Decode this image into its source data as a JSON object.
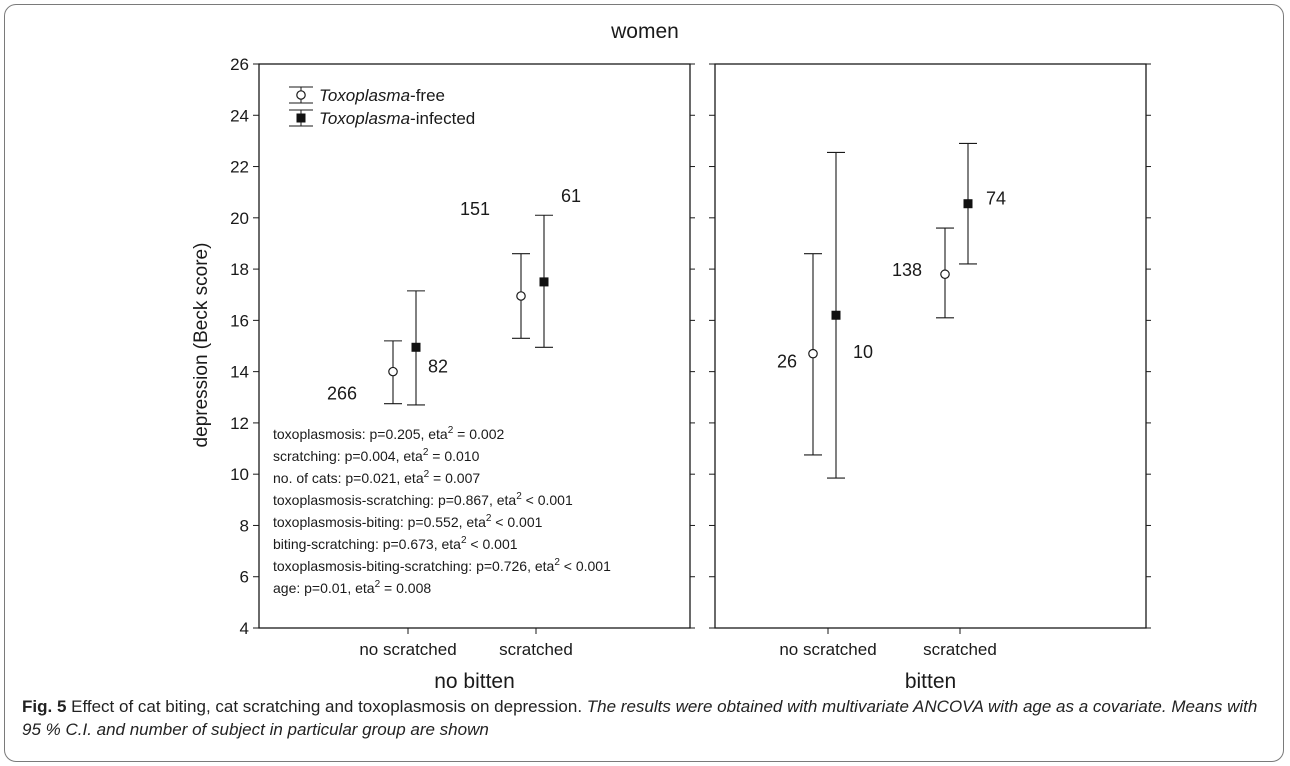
{
  "chart_data": {
    "type": "scatter",
    "title": "women",
    "ylabel": "depression (Beck score)",
    "ylim": [
      4,
      26
    ],
    "yticks": [
      4,
      6,
      8,
      10,
      12,
      14,
      16,
      18,
      20,
      22,
      24,
      26
    ],
    "grid": false,
    "legend_position": "top-left",
    "legend": [
      {
        "italic": "Toxoplasma",
        "rest": "-free",
        "marker": "open-circle"
      },
      {
        "italic": "Toxoplasma",
        "rest": "-infected",
        "marker": "filled-square"
      }
    ],
    "categories": [
      "no scratched",
      "scratched"
    ],
    "panels": [
      {
        "label": "no bitten",
        "series": [
          {
            "name": "Toxoplasma-free",
            "marker": "open-circle",
            "points": [
              {
                "category": "no scratched",
                "mean": 14.0,
                "ci_low": 12.75,
                "ci_high": 15.2,
                "n": "266"
              },
              {
                "category": "scratched",
                "mean": 16.95,
                "ci_low": 15.3,
                "ci_high": 18.6,
                "n": "151"
              }
            ]
          },
          {
            "name": "Toxoplasma-infected",
            "marker": "filled-square",
            "points": [
              {
                "category": "no scratched",
                "mean": 14.95,
                "ci_low": 12.7,
                "ci_high": 17.15,
                "n": "82"
              },
              {
                "category": "scratched",
                "mean": 17.5,
                "ci_low": 14.95,
                "ci_high": 20.1,
                "n": "61"
              }
            ]
          }
        ]
      },
      {
        "label": "bitten",
        "series": [
          {
            "name": "Toxoplasma-free",
            "marker": "open-circle",
            "points": [
              {
                "category": "no scratched",
                "mean": 14.7,
                "ci_low": 10.75,
                "ci_high": 18.6,
                "n": "26"
              },
              {
                "category": "scratched",
                "mean": 17.8,
                "ci_low": 16.1,
                "ci_high": 19.6,
                "n": "138"
              }
            ]
          },
          {
            "name": "Toxoplasma-infected",
            "marker": "filled-square",
            "points": [
              {
                "category": "no scratched",
                "mean": 16.2,
                "ci_low": 9.85,
                "ci_high": 22.55,
                "n": "10"
              },
              {
                "category": "scratched",
                "mean": 20.55,
                "ci_low": 18.2,
                "ci_high": 22.9,
                "n": "74"
              }
            ]
          }
        ]
      }
    ],
    "annotations": [
      {
        "text": "toxoplasmosis: p=0.205, eta",
        "sup": "2",
        "tail": " = 0.002"
      },
      {
        "text": "scratching: p=0.004, eta",
        "sup": "2",
        "tail": " = 0.010"
      },
      {
        "text": "no. of cats: p=0.021, eta",
        "sup": "2",
        "tail": " = 0.007"
      },
      {
        "text": "toxoplasmosis-scratching: p=0.867, eta",
        "sup": "2",
        "tail": " < 0.001"
      },
      {
        "text": "toxoplasmosis-biting: p=0.552, eta",
        "sup": "2",
        "tail": " < 0.001"
      },
      {
        "text": "biting-scratching: p=0.673, eta",
        "sup": "2",
        "tail": " < 0.001"
      },
      {
        "text": "toxoplasmosis-biting-scratching: p=0.726, eta",
        "sup": "2",
        "tail": " < 0.001"
      },
      {
        "text": "age: p=0.01, eta",
        "sup": "2",
        "tail": " = 0.008"
      }
    ]
  },
  "caption": {
    "fig_label": "Fig. 5",
    "title": " Effect of cat biting, cat scratching and toxoplasmosis on depression. ",
    "description": "The results were obtained with multivariate ANCOVA with age as a covariate. Means with 95 % C.I. and number of subject in particular group are shown"
  }
}
